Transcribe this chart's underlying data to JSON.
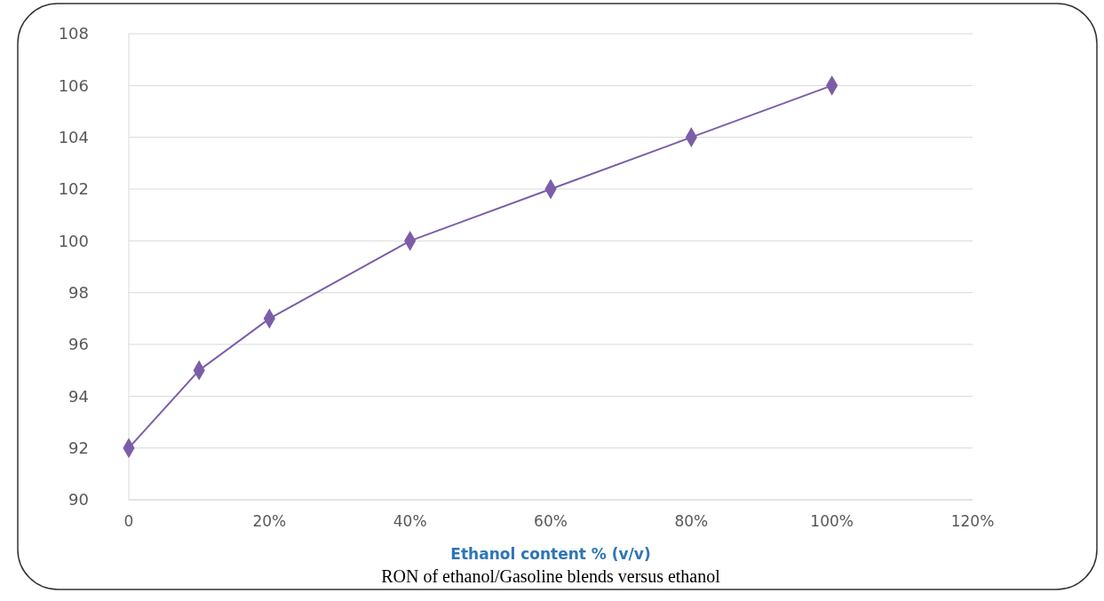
{
  "chart_data": {
    "type": "line",
    "title": "RON of ethanol/Gasoline blends versus ethanol",
    "xlabel": "Ethanol content % (v/v)",
    "x": [
      0,
      10,
      20,
      40,
      60,
      80,
      100
    ],
    "series": [
      {
        "color": "#7b5ea7",
        "values": [
          92,
          95,
          97,
          100,
          102,
          104,
          106
        ]
      }
    ],
    "xlim": [
      0,
      120
    ],
    "xticks": [
      {
        "value": 0,
        "label": "0"
      },
      {
        "value": 20,
        "label": "20%"
      },
      {
        "value": 40,
        "label": "40%"
      },
      {
        "value": 60,
        "label": "60%"
      },
      {
        "value": 80,
        "label": "80%"
      },
      {
        "value": 100,
        "label": "100%"
      },
      {
        "value": 120,
        "label": "120%"
      }
    ],
    "ylim": [
      90,
      108
    ],
    "yticks": [
      90,
      92,
      94,
      96,
      98,
      100,
      102,
      104,
      106,
      108
    ],
    "grid": "y",
    "marker": "diamond",
    "line_style": "solid"
  }
}
